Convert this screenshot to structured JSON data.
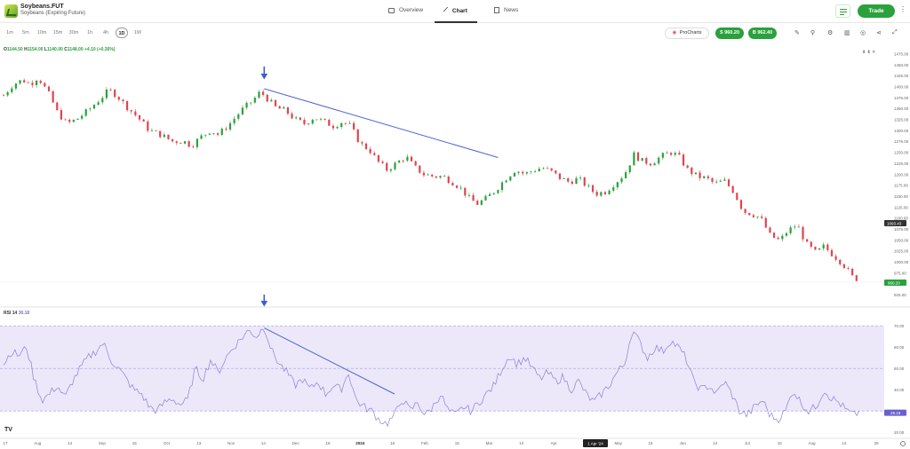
{
  "instrument": {
    "ticker": "Soybeans.FUT",
    "name": "Soybeans (Expiring Future)"
  },
  "nav": {
    "tabs": [
      {
        "label": "Overview",
        "icon": "overview-icon"
      },
      {
        "label": "Chart",
        "icon": "chart-icon"
      },
      {
        "label": "News",
        "icon": "news-icon"
      }
    ],
    "active": "Chart"
  },
  "header": {
    "trade_label": "Trade"
  },
  "toolbar": {
    "timeframes": [
      "1m",
      "5m",
      "10m",
      "15m",
      "30m",
      "1h",
      "4h",
      "1D",
      "1W"
    ],
    "active_timeframe": "1D",
    "procharts_label": "ProCharts",
    "sell": {
      "label": "S",
      "price": "960.20"
    },
    "buy": {
      "label": "B",
      "price": "962.40"
    },
    "tool_icons": [
      "draw-icon",
      "indicators-icon",
      "settings-icon",
      "alerts-icon",
      "compare-icon",
      "share-icon",
      "fullscreen-icon"
    ]
  },
  "ohlc": {
    "o": "1144.50",
    "h": "1154.00",
    "l": "1140.00",
    "c": "1148.00",
    "change": "+4.10 (+0.36%)"
  },
  "rsi": {
    "label": "RSI 14",
    "value": "30.18"
  },
  "chart_data": [
    {
      "type": "candlestick",
      "title": "Soybeans.FUT",
      "price_axis": [
        "1475.00",
        "1450.00",
        "1425.00",
        "1400.00",
        "1375.00",
        "1350.00",
        "1325.00",
        "1300.00",
        "1275.00",
        "1250.00",
        "1225.00",
        "1200.00",
        "1175.00",
        "1150.00",
        "1125.00",
        "1100.00",
        "1075.00",
        "1050.00",
        "1025.00",
        "1000.00",
        "975.00",
        "950.00",
        "925.00"
      ],
      "ylim": [
        915,
        1480
      ],
      "current_price_label": "960.20",
      "crosshair_price_label": "1093.43",
      "close_path": [
        {
          "x": 0,
          "close": 1380
        },
        {
          "x": 5,
          "close": 1405
        },
        {
          "x": 10,
          "close": 1415
        },
        {
          "x": 14,
          "close": 1405
        },
        {
          "x": 18,
          "close": 1422
        },
        {
          "x": 24,
          "close": 1380
        },
        {
          "x": 28,
          "close": 1342
        },
        {
          "x": 33,
          "close": 1315
        },
        {
          "x": 38,
          "close": 1325
        },
        {
          "x": 44,
          "close": 1345
        },
        {
          "x": 50,
          "close": 1370
        },
        {
          "x": 55,
          "close": 1392
        },
        {
          "x": 59,
          "close": 1380
        },
        {
          "x": 64,
          "close": 1355
        },
        {
          "x": 70,
          "close": 1330
        },
        {
          "x": 76,
          "close": 1300
        },
        {
          "x": 82,
          "close": 1290
        },
        {
          "x": 88,
          "close": 1275
        },
        {
          "x": 94,
          "close": 1275
        },
        {
          "x": 98,
          "close": 1265
        },
        {
          "x": 103,
          "close": 1285
        },
        {
          "x": 108,
          "close": 1300
        },
        {
          "x": 112,
          "close": 1290
        },
        {
          "x": 118,
          "close": 1315
        },
        {
          "x": 124,
          "close": 1345
        },
        {
          "x": 130,
          "close": 1368
        },
        {
          "x": 134,
          "close": 1388
        },
        {
          "x": 137,
          "close": 1375
        },
        {
          "x": 142,
          "close": 1352
        },
        {
          "x": 147,
          "close": 1345
        },
        {
          "x": 152,
          "close": 1325
        },
        {
          "x": 157,
          "close": 1315
        },
        {
          "x": 162,
          "close": 1330
        },
        {
          "x": 167,
          "close": 1320
        },
        {
          "x": 172,
          "close": 1310
        },
        {
          "x": 177,
          "close": 1320
        },
        {
          "x": 181,
          "close": 1310
        },
        {
          "x": 186,
          "close": 1270
        },
        {
          "x": 191,
          "close": 1255
        },
        {
          "x": 195,
          "close": 1230
        },
        {
          "x": 200,
          "close": 1210
        },
        {
          "x": 205,
          "close": 1225
        },
        {
          "x": 210,
          "close": 1240
        },
        {
          "x": 214,
          "close": 1218
        },
        {
          "x": 219,
          "close": 1200
        },
        {
          "x": 224,
          "close": 1195
        },
        {
          "x": 229,
          "close": 1195
        },
        {
          "x": 233,
          "close": 1185
        },
        {
          "x": 238,
          "close": 1170
        },
        {
          "x": 243,
          "close": 1145
        },
        {
          "x": 247,
          "close": 1132
        },
        {
          "x": 252,
          "close": 1145
        },
        {
          "x": 257,
          "close": 1165
        },
        {
          "x": 262,
          "close": 1190
        },
        {
          "x": 267,
          "close": 1210
        },
        {
          "x": 272,
          "close": 1200
        },
        {
          "x": 276,
          "close": 1208
        },
        {
          "x": 281,
          "close": 1215
        },
        {
          "x": 286,
          "close": 1205
        },
        {
          "x": 290,
          "close": 1192
        },
        {
          "x": 295,
          "close": 1182
        },
        {
          "x": 300,
          "close": 1190
        },
        {
          "x": 305,
          "close": 1170
        },
        {
          "x": 309,
          "close": 1155
        },
        {
          "x": 314,
          "close": 1160
        },
        {
          "x": 319,
          "close": 1180
        },
        {
          "x": 324,
          "close": 1200
        },
        {
          "x": 329,
          "close": 1245
        },
        {
          "x": 333,
          "close": 1230
        },
        {
          "x": 338,
          "close": 1225
        },
        {
          "x": 343,
          "close": 1240
        },
        {
          "x": 348,
          "close": 1250
        },
        {
          "x": 352,
          "close": 1242
        },
        {
          "x": 357,
          "close": 1210
        },
        {
          "x": 362,
          "close": 1195
        },
        {
          "x": 367,
          "close": 1190
        },
        {
          "x": 371,
          "close": 1178
        },
        {
          "x": 376,
          "close": 1185
        },
        {
          "x": 381,
          "close": 1160
        },
        {
          "x": 386,
          "close": 1115
        },
        {
          "x": 390,
          "close": 1110
        },
        {
          "x": 395,
          "close": 1100
        },
        {
          "x": 400,
          "close": 1060
        },
        {
          "x": 405,
          "close": 1048
        },
        {
          "x": 409,
          "close": 1070
        },
        {
          "x": 414,
          "close": 1085
        },
        {
          "x": 419,
          "close": 1040
        },
        {
          "x": 424,
          "close": 1020
        },
        {
          "x": 428,
          "close": 1035
        },
        {
          "x": 433,
          "close": 1015
        },
        {
          "x": 438,
          "close": 995
        },
        {
          "x": 443,
          "close": 965
        },
        {
          "x": 447,
          "close": 958
        }
      ],
      "trendline": {
        "from": {
          "x": 136,
          "close": 1395
        },
        "to": {
          "x": 258,
          "close": 1238
        }
      },
      "arrow_at": {
        "x": 136,
        "close": 1400
      }
    },
    {
      "type": "line",
      "title": "RSI 14",
      "rsi_axis": [
        "70.00",
        "60.00",
        "50.00",
        "40.00",
        "30.00",
        "20.00"
      ],
      "ylim": [
        18,
        78
      ],
      "current_label": "29.18",
      "band": [
        30,
        70
      ],
      "midline": 50,
      "x_labels": [
        "17",
        "Aug",
        "14",
        "Sep",
        "15",
        "Oct",
        "13",
        "Nov",
        "14",
        "Dec",
        "16",
        "2024",
        "16",
        "Feb",
        "15",
        "Mar",
        "14",
        "Apr",
        "15",
        "May",
        "16",
        "Jun",
        "14",
        "Jul",
        "15",
        "Aug",
        "14",
        "25"
      ],
      "date_tooltip": "1 Apr '24",
      "values": [
        {
          "x": 0,
          "v": 52
        },
        {
          "x": 4,
          "v": 58
        },
        {
          "x": 8,
          "v": 56
        },
        {
          "x": 12,
          "v": 60
        },
        {
          "x": 16,
          "v": 45
        },
        {
          "x": 20,
          "v": 35
        },
        {
          "x": 24,
          "v": 38
        },
        {
          "x": 28,
          "v": 42
        },
        {
          "x": 32,
          "v": 36
        },
        {
          "x": 36,
          "v": 44
        },
        {
          "x": 40,
          "v": 50
        },
        {
          "x": 44,
          "v": 55
        },
        {
          "x": 48,
          "v": 58
        },
        {
          "x": 52,
          "v": 62
        },
        {
          "x": 56,
          "v": 54
        },
        {
          "x": 60,
          "v": 50
        },
        {
          "x": 64,
          "v": 45
        },
        {
          "x": 68,
          "v": 40
        },
        {
          "x": 72,
          "v": 38
        },
        {
          "x": 76,
          "v": 32
        },
        {
          "x": 80,
          "v": 30
        },
        {
          "x": 84,
          "v": 34
        },
        {
          "x": 88,
          "v": 36
        },
        {
          "x": 92,
          "v": 33
        },
        {
          "x": 96,
          "v": 35
        },
        {
          "x": 100,
          "v": 50
        },
        {
          "x": 104,
          "v": 45
        },
        {
          "x": 108,
          "v": 54
        },
        {
          "x": 112,
          "v": 48
        },
        {
          "x": 116,
          "v": 55
        },
        {
          "x": 120,
          "v": 60
        },
        {
          "x": 124,
          "v": 64
        },
        {
          "x": 128,
          "v": 68
        },
        {
          "x": 132,
          "v": 65
        },
        {
          "x": 136,
          "v": 70
        },
        {
          "x": 140,
          "v": 58
        },
        {
          "x": 144,
          "v": 52
        },
        {
          "x": 148,
          "v": 48
        },
        {
          "x": 152,
          "v": 42
        },
        {
          "x": 156,
          "v": 45
        },
        {
          "x": 160,
          "v": 40
        },
        {
          "x": 164,
          "v": 44
        },
        {
          "x": 168,
          "v": 38
        },
        {
          "x": 172,
          "v": 42
        },
        {
          "x": 176,
          "v": 40
        },
        {
          "x": 180,
          "v": 48
        },
        {
          "x": 184,
          "v": 35
        },
        {
          "x": 188,
          "v": 32
        },
        {
          "x": 192,
          "v": 30
        },
        {
          "x": 196,
          "v": 26
        },
        {
          "x": 200,
          "v": 24
        },
        {
          "x": 204,
          "v": 28
        },
        {
          "x": 208,
          "v": 36
        },
        {
          "x": 212,
          "v": 30
        },
        {
          "x": 216,
          "v": 34
        },
        {
          "x": 220,
          "v": 28
        },
        {
          "x": 224,
          "v": 32
        },
        {
          "x": 228,
          "v": 38
        },
        {
          "x": 232,
          "v": 30
        },
        {
          "x": 236,
          "v": 28
        },
        {
          "x": 240,
          "v": 32
        },
        {
          "x": 244,
          "v": 30
        },
        {
          "x": 248,
          "v": 34
        },
        {
          "x": 252,
          "v": 38
        },
        {
          "x": 256,
          "v": 42
        },
        {
          "x": 260,
          "v": 50
        },
        {
          "x": 264,
          "v": 56
        },
        {
          "x": 268,
          "v": 52
        },
        {
          "x": 272,
          "v": 55
        },
        {
          "x": 276,
          "v": 50
        },
        {
          "x": 280,
          "v": 45
        },
        {
          "x": 284,
          "v": 48
        },
        {
          "x": 288,
          "v": 44
        },
        {
          "x": 292,
          "v": 46
        },
        {
          "x": 296,
          "v": 40
        },
        {
          "x": 300,
          "v": 44
        },
        {
          "x": 304,
          "v": 38
        },
        {
          "x": 308,
          "v": 34
        },
        {
          "x": 312,
          "v": 38
        },
        {
          "x": 316,
          "v": 42
        },
        {
          "x": 320,
          "v": 48
        },
        {
          "x": 324,
          "v": 52
        },
        {
          "x": 328,
          "v": 68
        },
        {
          "x": 332,
          "v": 62
        },
        {
          "x": 336,
          "v": 55
        },
        {
          "x": 340,
          "v": 60
        },
        {
          "x": 344,
          "v": 58
        },
        {
          "x": 348,
          "v": 63
        },
        {
          "x": 352,
          "v": 60
        },
        {
          "x": 356,
          "v": 55
        },
        {
          "x": 360,
          "v": 44
        },
        {
          "x": 364,
          "v": 40
        },
        {
          "x": 368,
          "v": 42
        },
        {
          "x": 372,
          "v": 38
        },
        {
          "x": 376,
          "v": 44
        },
        {
          "x": 380,
          "v": 38
        },
        {
          "x": 384,
          "v": 30
        },
        {
          "x": 388,
          "v": 28
        },
        {
          "x": 392,
          "v": 32
        },
        {
          "x": 396,
          "v": 35
        },
        {
          "x": 400,
          "v": 28
        },
        {
          "x": 404,
          "v": 26
        },
        {
          "x": 408,
          "v": 30
        },
        {
          "x": 412,
          "v": 40
        },
        {
          "x": 416,
          "v": 34
        },
        {
          "x": 420,
          "v": 30
        },
        {
          "x": 424,
          "v": 32
        },
        {
          "x": 428,
          "v": 40
        },
        {
          "x": 432,
          "v": 36
        },
        {
          "x": 436,
          "v": 34
        },
        {
          "x": 440,
          "v": 30
        },
        {
          "x": 444,
          "v": 28
        },
        {
          "x": 447,
          "v": 30
        }
      ],
      "trendline": {
        "from": {
          "x": 136,
          "v": 69
        },
        "to": {
          "x": 204,
          "v": 38
        }
      },
      "arrow_at": {
        "x": 136,
        "v": 75
      }
    }
  ]
}
